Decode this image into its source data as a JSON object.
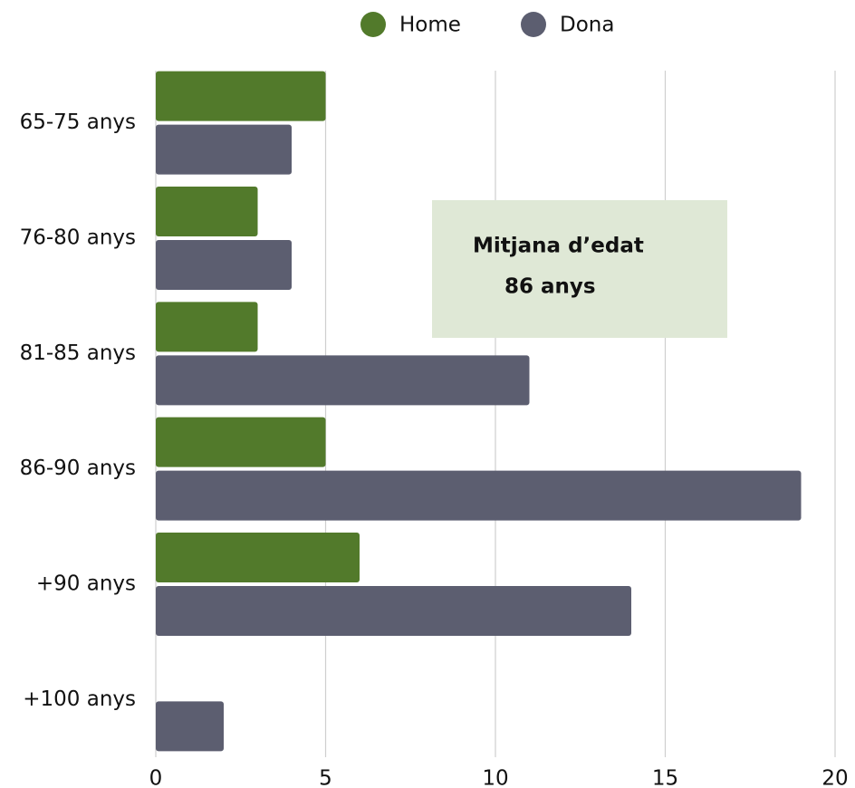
{
  "chart_data": {
    "type": "hbar",
    "categories": [
      "65-75 anys",
      "76-80 anys",
      "81-85 anys",
      "86-90 anys",
      "+90 anys",
      "+100 anys"
    ],
    "series": [
      {
        "name": "Home",
        "color": "#527a2b",
        "values": [
          5,
          3,
          3,
          5,
          6,
          0
        ]
      },
      {
        "name": "Dona",
        "color": "#5c5e70",
        "values": [
          4,
          4,
          11,
          19,
          14,
          2
        ]
      }
    ],
    "xlim": [
      0,
      20
    ],
    "xticks": [
      0,
      5,
      10,
      15,
      20
    ],
    "grid": true,
    "legend": "top",
    "annotation": [
      "Mitjana d’edat",
      "86 anys"
    ]
  }
}
